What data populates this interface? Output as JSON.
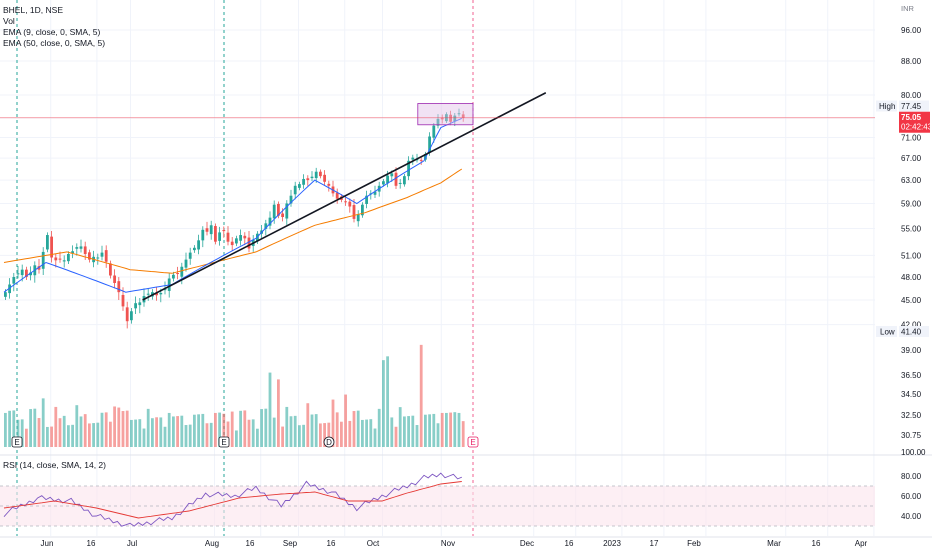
{
  "legend": {
    "symbol": "BHEL, 1D, NSE",
    "vol": "Vol",
    "ema9": "EMA (9, close, 0, SMA, 5)",
    "ema50": "EMA (50, close, 0, SMA, 5)",
    "rsi": "RSI (14, close, SMA, 14, 2)"
  },
  "currency": "INR",
  "price_axis": {
    "ticks": [
      "96.00",
      "88.00",
      "80.00",
      "75.00",
      "71.00",
      "67.00",
      "63.00",
      "59.00",
      "55.00",
      "51.00",
      "48.00",
      "45.00",
      "42.00"
    ],
    "high_label": "High",
    "high_value": "77.45",
    "current_value": "75.05",
    "countdown": "02:42:43",
    "low_label": "Low",
    "low_value": "41.40"
  },
  "volume_axis": {
    "ticks": [
      "39.00",
      "36.50",
      "34.50",
      "32.50",
      "30.75",
      "100.00"
    ]
  },
  "rsi_axis": {
    "ticks": [
      "80.00",
      "60.00",
      "40.00"
    ]
  },
  "time_axis": {
    "labels": [
      "Jun",
      "16",
      "Jul",
      "Aug",
      "16",
      "Sep",
      "16",
      "Oct",
      "Nov",
      "Dec",
      "16",
      "2023",
      "17",
      "Feb",
      "Mar",
      "16",
      "Apr"
    ]
  },
  "event_markers": [
    "E",
    "E",
    "D",
    "E"
  ],
  "colors": {
    "up": "#26a69a",
    "down": "#ef5350",
    "ema9": "#2962ff",
    "ema50": "#f57c00",
    "rsi": "#7e57c2",
    "rsi_ma": "#e53935",
    "trendline": "#131722",
    "highlight_box": "#9c27b0",
    "current_price": "#f23645"
  },
  "chart_data": {
    "type": "candlestick",
    "title": "BHEL, 1D, NSE",
    "ylim": [
      41,
      97
    ],
    "series_price": {
      "start_index": 0,
      "closes": [
        46,
        47,
        48,
        48.5,
        49,
        48,
        48.6,
        49.6,
        49,
        51.5,
        54,
        50.7,
        50.3,
        50.5,
        50.3,
        51.2,
        51.6,
        52.2,
        52.3,
        51.2,
        50.4,
        50.8,
        50.7,
        51.4,
        50.1,
        48.2,
        47.2,
        46,
        44.2,
        42.4,
        43.6,
        44.6,
        44.7,
        45.5,
        45.8,
        46,
        45.6,
        45.9,
        46.4,
        47.8,
        48.3,
        48.4,
        49.4,
        50.4,
        51.4,
        52.1,
        53.2,
        54.8,
        54.5,
        55.5,
        53,
        54.4,
        54.6,
        53,
        52.5,
        53.5,
        54,
        53.5,
        52,
        53.3,
        54.2,
        54.7,
        55.8,
        56.7,
        58.8,
        57,
        56.8,
        59,
        60.3,
        62,
        62.3,
        63.2,
        63,
        63.6,
        64.5,
        63.7,
        62.7,
        62,
        60.7,
        59.8,
        59.6,
        59.3,
        58.5,
        56.5,
        57.2,
        58.8,
        60.3,
        60.7,
        61,
        62,
        62.8,
        63.8,
        64.2,
        62,
        62.5,
        63.7,
        66.5,
        67.1,
        66.8,
        66.6,
        67.8,
        71.2,
        73.4,
        74.8,
        74.7,
        75.8,
        74.2,
        75.5,
        76,
        75.05
      ]
    },
    "series_ema9_anchor": [
      [
        0,
        46
      ],
      [
        10,
        50
      ],
      [
        29,
        46
      ],
      [
        40,
        47
      ],
      [
        60,
        53.5
      ],
      [
        74,
        63
      ],
      [
        84,
        59
      ],
      [
        100,
        66.5
      ],
      [
        104,
        73
      ],
      [
        110,
        75.3
      ]
    ],
    "series_ema50_anchor": [
      [
        0,
        50
      ],
      [
        15,
        51.5
      ],
      [
        30,
        49
      ],
      [
        40,
        48.5
      ],
      [
        60,
        51.5
      ],
      [
        74,
        55.5
      ],
      [
        86,
        57.5
      ],
      [
        96,
        60
      ],
      [
        104,
        62.5
      ],
      [
        110,
        65.5
      ]
    ],
    "trendline": {
      "from": [
        33,
        45
      ],
      "to": [
        129,
        80.5
      ]
    },
    "highlight_box": {
      "from_index": 99,
      "to_index": 110,
      "low": 74.2,
      "high": 77.45
    },
    "volume_anchor": [
      [
        8,
        36
      ],
      [
        12,
        30
      ],
      [
        23,
        34
      ],
      [
        41,
        32
      ],
      [
        53,
        33
      ],
      [
        60,
        34
      ],
      [
        62,
        37.5
      ],
      [
        72,
        34
      ],
      [
        80,
        34.5
      ],
      [
        94,
        40
      ],
      [
        99,
        40
      ],
      [
        102,
        35
      ],
      [
        104,
        33
      ]
    ],
    "rsi": {
      "ylim": [
        20,
        100
      ],
      "levels": [
        70,
        50,
        30
      ],
      "values_anchor": [
        [
          0,
          42
        ],
        [
          8,
          58
        ],
        [
          16,
          55
        ],
        [
          22,
          40
        ],
        [
          30,
          30
        ],
        [
          40,
          38
        ],
        [
          48,
          62
        ],
        [
          55,
          60
        ],
        [
          60,
          68
        ],
        [
          66,
          50
        ],
        [
          72,
          72
        ],
        [
          78,
          64
        ],
        [
          84,
          48
        ],
        [
          90,
          60
        ],
        [
          96,
          70
        ],
        [
          100,
          78
        ],
        [
          104,
          82
        ],
        [
          110,
          76
        ]
      ],
      "ma_anchor": [
        [
          0,
          48
        ],
        [
          12,
          55
        ],
        [
          22,
          48
        ],
        [
          32,
          38
        ],
        [
          44,
          45
        ],
        [
          56,
          58
        ],
        [
          66,
          62
        ],
        [
          74,
          64
        ],
        [
          82,
          55
        ],
        [
          90,
          55
        ],
        [
          96,
          63
        ],
        [
          104,
          72
        ],
        [
          110,
          75
        ]
      ]
    }
  }
}
